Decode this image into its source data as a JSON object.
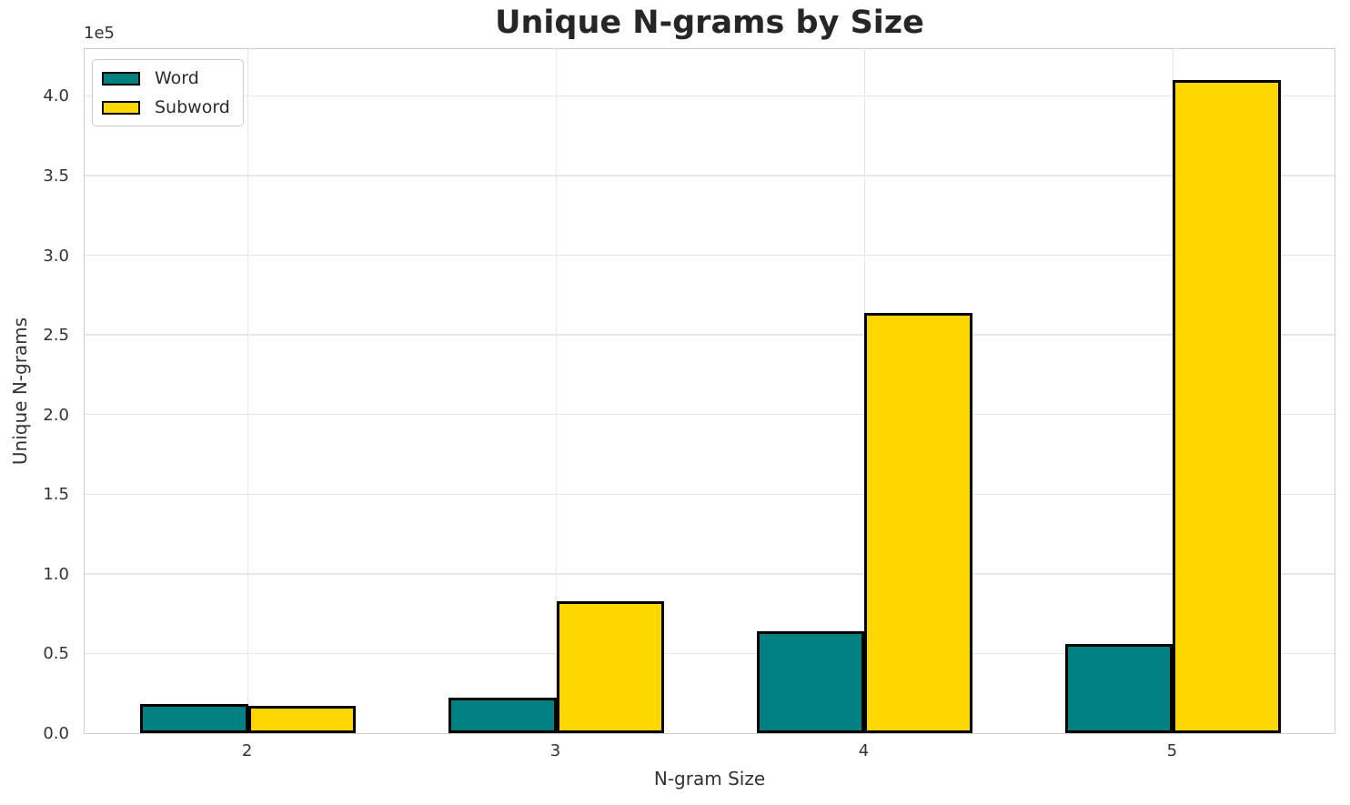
{
  "chart_data": {
    "type": "bar",
    "title": "Unique N-grams by Size",
    "xlabel": "N-gram Size",
    "ylabel": "Unique N-grams",
    "y_offset_text": "1e5",
    "categories": [
      "2",
      "3",
      "4",
      "5"
    ],
    "x_positions": [
      2,
      3,
      4,
      5
    ],
    "series": [
      {
        "name": "Word",
        "color": "#008080",
        "values": [
          18000,
          22000,
          64000,
          56000
        ]
      },
      {
        "name": "Subword",
        "color": "#FFD700",
        "values": [
          17000,
          83000,
          264000,
          410000
        ]
      }
    ],
    "bar_edge_color": "#000000",
    "bar_width": 0.35,
    "xlim": [
      1.47,
      5.53
    ],
    "ylim": [
      0,
      430500
    ],
    "ytick_values": [
      0,
      50000,
      100000,
      150000,
      200000,
      250000,
      300000,
      350000,
      400000
    ],
    "ytick_labels": [
      "0.0",
      "0.5",
      "1.0",
      "1.5",
      "2.0",
      "2.5",
      "3.0",
      "3.5",
      "4.0"
    ],
    "grid": true,
    "legend_position": "upper left",
    "grid_color": "#e8e8e8",
    "spine_color": "#cfcfcf",
    "text_color": "#333333",
    "title_color": "#262626"
  }
}
